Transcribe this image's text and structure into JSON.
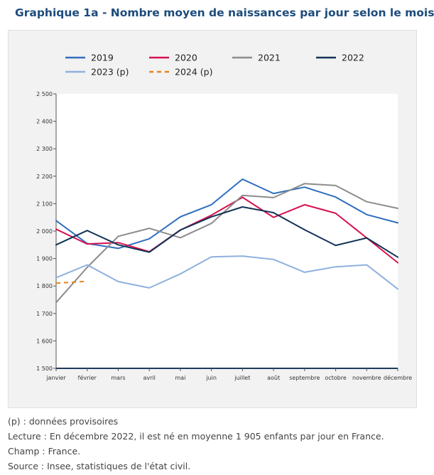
{
  "title": "Graphique 1a - Nombre moyen de naissances par jour selon le mois",
  "notes": [
    "(p) : données provisoires",
    "Lecture : En décembre 2022, il est né en moyenne 1 905 enfants par jour en France.",
    "Champ : France.",
    "Source : Insee, statistiques de l'état civil."
  ],
  "chart_data": {
    "type": "line",
    "title": "Graphique 1a - Nombre moyen de naissances par jour selon le mois",
    "xlabel": "",
    "ylabel": "",
    "categories": [
      "janvier",
      "février",
      "mars",
      "avril",
      "mai",
      "juin",
      "juillet",
      "août",
      "septembre",
      "octobre",
      "novembre",
      "décembre"
    ],
    "ylim": [
      1500,
      2500
    ],
    "yticks": [
      1500,
      1600,
      1700,
      1800,
      1900,
      2000,
      2100,
      2200,
      2300,
      2400,
      2500
    ],
    "ytick_labels": [
      "1 500",
      "1 600",
      "1 700",
      "1 800",
      "1 900",
      "2 000",
      "2 100",
      "2 200",
      "2 300",
      "2 400",
      "2 500"
    ],
    "grid": false,
    "legend_position": "top",
    "series": [
      {
        "name": "2019",
        "color": "#2f6fbf",
        "dashed": false,
        "values": [
          2038,
          1955,
          1937,
          1972,
          2052,
          2096,
          2189,
          2137,
          2160,
          2124,
          2060,
          2030
        ]
      },
      {
        "name": "2020",
        "color": "#d6124e",
        "dashed": false,
        "values": [
          2007,
          1953,
          1958,
          1925,
          2004,
          2058,
          2123,
          2050,
          2096,
          2065,
          1975,
          1885
        ]
      },
      {
        "name": "2021",
        "color": "#8c8c8c",
        "dashed": false,
        "values": [
          1740,
          1868,
          1981,
          2010,
          1976,
          2028,
          2130,
          2122,
          2173,
          2166,
          2107,
          2083
        ]
      },
      {
        "name": "2022",
        "color": "#123355",
        "dashed": false,
        "values": [
          1950,
          2002,
          1950,
          1923,
          2004,
          2052,
          2088,
          2067,
          2005,
          1948,
          1975,
          1905
        ]
      },
      {
        "name": "2023 (p)",
        "color": "#8fb0de",
        "dashed": false,
        "values": [
          1830,
          1877,
          1816,
          1793,
          1844,
          1906,
          1909,
          1897,
          1850,
          1870,
          1877,
          1789
        ]
      },
      {
        "name": "2024 (p)",
        "color": "#e8821c",
        "dashed": true,
        "values": [
          1810,
          1817,
          null,
          null,
          null,
          null,
          null,
          null,
          null,
          null,
          null,
          null
        ]
      }
    ]
  }
}
